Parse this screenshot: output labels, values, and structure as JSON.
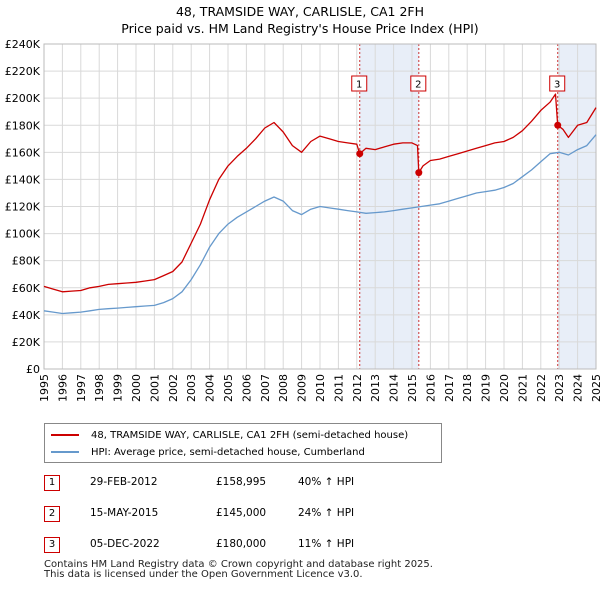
{
  "title": {
    "line1": "48, TRAMSIDE WAY, CARLISLE, CA1 2FH",
    "line2": "Price paid vs. HM Land Registry's House Price Index (HPI)"
  },
  "colors": {
    "property": "#cc0000",
    "hpi": "#6699cc",
    "shade": "#e8eef8",
    "marker_border": "#cc0000",
    "vline": "#cc3333",
    "grid": "#d9d9d9"
  },
  "legend": {
    "property_label": "48, TRAMSIDE WAY, CARLISLE, CA1 2FH (semi-detached house)",
    "hpi_label": "HPI: Average price, semi-detached house, Cumberland"
  },
  "transactions": [
    {
      "num": "1",
      "date": "29-FEB-2012",
      "price": "£158,995",
      "hpi": "40% ↑ HPI"
    },
    {
      "num": "2",
      "date": "15-MAY-2015",
      "price": "£145,000",
      "hpi": "24% ↑ HPI"
    },
    {
      "num": "3",
      "date": "05-DEC-2022",
      "price": "£180,000",
      "hpi": "11% ↑ HPI"
    }
  ],
  "footer": {
    "line1": "Contains HM Land Registry data © Crown copyright and database right 2025.",
    "line2": "This data is licensed under the Open Government Licence v3.0."
  },
  "chart_data": {
    "type": "line",
    "title": "48, TRAMSIDE WAY, CARLISLE, CA1 2FH — Price paid vs. HM Land Registry's House Price Index (HPI)",
    "xlabel": "",
    "ylabel": "",
    "xlim": [
      1995,
      2025
    ],
    "ylim": [
      0,
      240000
    ],
    "y_ticks": [
      0,
      20000,
      40000,
      60000,
      80000,
      100000,
      120000,
      140000,
      160000,
      180000,
      200000,
      220000,
      240000
    ],
    "y_tick_labels": [
      "£0",
      "£20K",
      "£40K",
      "£60K",
      "£80K",
      "£100K",
      "£120K",
      "£140K",
      "£160K",
      "£180K",
      "£200K",
      "£220K",
      "£240K"
    ],
    "x_ticks": [
      1995,
      1996,
      1997,
      1998,
      1999,
      2000,
      2001,
      2002,
      2003,
      2004,
      2005,
      2006,
      2007,
      2008,
      2009,
      2010,
      2011,
      2012,
      2013,
      2014,
      2015,
      2016,
      2017,
      2018,
      2019,
      2020,
      2021,
      2022,
      2023,
      2024,
      2025
    ],
    "x_tick_labels": [
      "1995",
      "1996",
      "1997",
      "1998",
      "1999",
      "2000",
      "2001",
      "2002",
      "2003",
      "2004",
      "2005",
      "2006",
      "2007",
      "2008",
      "2009",
      "2010",
      "2011",
      "2012",
      "2013",
      "2014",
      "2015",
      "2016",
      "2017",
      "2018",
      "2019",
      "2020",
      "2021",
      "2022",
      "2023",
      "2024",
      "2025"
    ],
    "grid": true,
    "shaded_ranges": [
      [
        2012.16,
        2015.37
      ],
      [
        2022.92,
        2025
      ]
    ],
    "series": [
      {
        "name": "48, TRAMSIDE WAY, CARLISLE, CA1 2FH (semi-detached house)",
        "color": "#cc0000",
        "x": [
          1995.0,
          1995.5,
          1996.0,
          1996.5,
          1997.0,
          1997.5,
          1998.0,
          1998.5,
          1999.0,
          1999.5,
          2000.0,
          2000.5,
          2001.0,
          2001.5,
          2002.0,
          2002.5,
          2003.0,
          2003.5,
          2004.0,
          2004.5,
          2005.0,
          2005.5,
          2006.0,
          2006.5,
          2007.0,
          2007.5,
          2008.0,
          2008.5,
          2009.0,
          2009.5,
          2010.0,
          2010.5,
          2011.0,
          2011.5,
          2012.0,
          2012.16,
          2012.5,
          2013.0,
          2013.5,
          2014.0,
          2014.5,
          2015.0,
          2015.3,
          2015.37,
          2015.6,
          2016.0,
          2016.5,
          2017.0,
          2017.5,
          2018.0,
          2018.5,
          2019.0,
          2019.5,
          2020.0,
          2020.5,
          2021.0,
          2021.5,
          2022.0,
          2022.5,
          2022.8,
          2022.92,
          2023.2,
          2023.5,
          2024.0,
          2024.5,
          2025.0
        ],
        "values": [
          61000,
          59000,
          57000,
          57500,
          58000,
          60000,
          61000,
          62500,
          63000,
          63500,
          64000,
          65000,
          66000,
          69000,
          72000,
          79000,
          93000,
          107000,
          125000,
          140000,
          150000,
          157000,
          163000,
          170000,
          178000,
          182000,
          175000,
          165000,
          160000,
          168000,
          172000,
          170000,
          168000,
          167000,
          166000,
          158995,
          163000,
          162000,
          164000,
          166000,
          167000,
          167000,
          165000,
          145000,
          150000,
          154000,
          155000,
          157000,
          159000,
          161000,
          163000,
          165000,
          167000,
          168000,
          171000,
          176000,
          183000,
          191000,
          197000,
          203000,
          180000,
          177000,
          171000,
          180000,
          182000,
          193000
        ]
      },
      {
        "name": "HPI: Average price, semi-detached house, Cumberland",
        "color": "#6699cc",
        "x": [
          1995.0,
          1995.5,
          1996.0,
          1996.5,
          1997.0,
          1997.5,
          1998.0,
          1998.5,
          1999.0,
          1999.5,
          2000.0,
          2000.5,
          2001.0,
          2001.5,
          2002.0,
          2002.5,
          2003.0,
          2003.5,
          2004.0,
          2004.5,
          2005.0,
          2005.5,
          2006.0,
          2006.5,
          2007.0,
          2007.5,
          2008.0,
          2008.5,
          2009.0,
          2009.5,
          2010.0,
          2010.5,
          2011.0,
          2011.5,
          2012.0,
          2012.5,
          2013.0,
          2013.5,
          2014.0,
          2014.5,
          2015.0,
          2015.5,
          2016.0,
          2016.5,
          2017.0,
          2017.5,
          2018.0,
          2018.5,
          2019.0,
          2019.5,
          2020.0,
          2020.5,
          2021.0,
          2021.5,
          2022.0,
          2022.5,
          2023.0,
          2023.5,
          2024.0,
          2024.5,
          2025.0
        ],
        "values": [
          43000,
          42000,
          41000,
          41500,
          42000,
          43000,
          44000,
          44500,
          45000,
          45500,
          46000,
          46500,
          47000,
          49000,
          52000,
          57000,
          66000,
          77000,
          90000,
          100000,
          107000,
          112000,
          116000,
          120000,
          124000,
          127000,
          124000,
          117000,
          114000,
          118000,
          120000,
          119000,
          118000,
          117000,
          116000,
          115000,
          115500,
          116000,
          117000,
          118000,
          119000,
          120000,
          121000,
          122000,
          124000,
          126000,
          128000,
          130000,
          131000,
          132000,
          134000,
          137000,
          142000,
          147000,
          153000,
          159000,
          160000,
          158000,
          162000,
          165000,
          173000
        ]
      }
    ],
    "markers": [
      {
        "num": "1",
        "x": 2012.16,
        "y": 158995
      },
      {
        "num": "2",
        "x": 2015.37,
        "y": 145000
      },
      {
        "num": "3",
        "x": 2022.92,
        "y": 180000
      }
    ]
  }
}
